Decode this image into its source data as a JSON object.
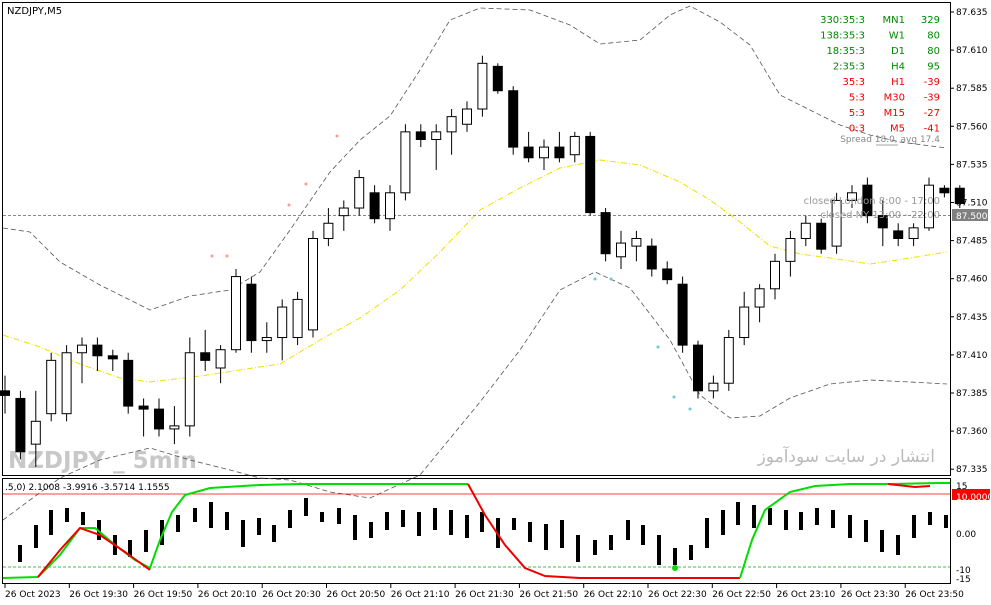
{
  "window": {
    "symbol_label": "NZDJPY,M5",
    "watermark": "NZDJPY _ 5min",
    "site_text": "انتشار در سایت سودآموز"
  },
  "colors": {
    "background": "#ffffff",
    "bull_fill": "#ffffff",
    "bear_fill": "#000000",
    "candle_outline": "#000000",
    "bollinger": "#555555",
    "ma_yellow": "#f0e000",
    "bid_line": "#888888",
    "osc_green": "#00dd00",
    "osc_red": "#ee0000",
    "level_line": "#ff0000",
    "level_green": "#00aa00",
    "price_tag_bg": "#808080",
    "positive": "#008800",
    "negative": "#ee0000"
  },
  "price_axis": {
    "labels": [
      "87.635",
      "87.610",
      "87.585",
      "87.560",
      "87.535",
      "87.510",
      "87.485",
      "87.460",
      "87.435",
      "87.410",
      "87.385",
      "87.360",
      "87.335"
    ],
    "current_price": "87.500"
  },
  "time_axis": {
    "labels": [
      "26 Oct 2023",
      "26 Oct 19:30",
      "26 Oct 19:50",
      "26 Oct 20:10",
      "26 Oct 20:30",
      "26 Oct 20:50",
      "26 Oct 21:10",
      "26 Oct 21:30",
      "26 Oct 21:50",
      "26 Oct 22:10",
      "26 Oct 22:30",
      "26 Oct 22:50",
      "26 Oct 23:10",
      "26 Oct 23:30",
      "26 Oct 23:50"
    ]
  },
  "timeframe_panel": {
    "rows": [
      {
        "time": "330:35:3",
        "tf": "MN1",
        "value": "329",
        "positive": true
      },
      {
        "time": "138:35:3",
        "tf": "W1",
        "value": "80",
        "positive": true
      },
      {
        "time": "18:35:3",
        "tf": "D1",
        "value": "80",
        "positive": true
      },
      {
        "time": "2:35:3",
        "tf": "H4",
        "value": "95",
        "positive": true
      },
      {
        "time": "35:3",
        "tf": "H1",
        "value": "-39",
        "positive": false
      },
      {
        "time": "5:3",
        "tf": "M30",
        "value": "-39",
        "positive": false
      },
      {
        "time": "5:3",
        "tf": "M15",
        "value": "-27",
        "positive": false
      },
      {
        "time": "0:3",
        "tf": "M5",
        "value": "-41",
        "positive": false
      }
    ],
    "spread": "Spread 18.0, avg 17.4"
  },
  "session_info": {
    "london": "closed London 8:00 - 17:00",
    "ny": "closed NY 13:00 - 22:00"
  },
  "indicator": {
    "label": ".5,0) 2.1008 -3.9916 -3.5714 1.1555",
    "axis_labels": [
      "15",
      "10.0000",
      "0.00",
      "-10",
      "-15"
    ]
  },
  "chart_data": {
    "type": "candlestick",
    "ylim": [
      87.33,
      87.64
    ],
    "candles": [
      {
        "o": 87.385,
        "h": 87.395,
        "l": 87.37,
        "c": 87.382
      },
      {
        "o": 87.38,
        "h": 87.385,
        "l": 87.34,
        "c": 87.345
      },
      {
        "o": 87.35,
        "h": 87.385,
        "l": 87.335,
        "c": 87.365
      },
      {
        "o": 87.37,
        "h": 87.41,
        "l": 87.365,
        "c": 87.405
      },
      {
        "o": 87.37,
        "h": 87.415,
        "l": 87.365,
        "c": 87.41
      },
      {
        "o": 87.41,
        "h": 87.42,
        "l": 87.39,
        "c": 87.415
      },
      {
        "o": 87.415,
        "h": 87.42,
        "l": 87.398,
        "c": 87.408
      },
      {
        "o": 87.408,
        "h": 87.412,
        "l": 87.398,
        "c": 87.406
      },
      {
        "o": 87.405,
        "h": 87.41,
        "l": 87.37,
        "c": 87.375
      },
      {
        "o": 87.375,
        "h": 87.38,
        "l": 87.355,
        "c": 87.373
      },
      {
        "o": 87.373,
        "h": 87.38,
        "l": 87.355,
        "c": 87.36
      },
      {
        "o": 87.36,
        "h": 87.375,
        "l": 87.35,
        "c": 87.362
      },
      {
        "o": 87.362,
        "h": 87.42,
        "l": 87.355,
        "c": 87.41
      },
      {
        "o": 87.41,
        "h": 87.425,
        "l": 87.398,
        "c": 87.405
      },
      {
        "o": 87.4,
        "h": 87.415,
        "l": 87.39,
        "c": 87.412
      },
      {
        "o": 87.412,
        "h": 87.465,
        "l": 87.41,
        "c": 87.46
      },
      {
        "o": 87.455,
        "h": 87.46,
        "l": 87.41,
        "c": 87.418
      },
      {
        "o": 87.418,
        "h": 87.43,
        "l": 87.41,
        "c": 87.42
      },
      {
        "o": 87.42,
        "h": 87.445,
        "l": 87.405,
        "c": 87.44
      },
      {
        "o": 87.42,
        "h": 87.45,
        "l": 87.415,
        "c": 87.445
      },
      {
        "o": 87.425,
        "h": 87.49,
        "l": 87.42,
        "c": 87.485
      },
      {
        "o": 87.485,
        "h": 87.505,
        "l": 87.48,
        "c": 87.495
      },
      {
        "o": 87.5,
        "h": 87.51,
        "l": 87.49,
        "c": 87.505
      },
      {
        "o": 87.505,
        "h": 87.53,
        "l": 87.5,
        "c": 87.525
      },
      {
        "o": 87.515,
        "h": 87.52,
        "l": 87.495,
        "c": 87.498
      },
      {
        "o": 87.498,
        "h": 87.52,
        "l": 87.49,
        "c": 87.515
      },
      {
        "o": 87.515,
        "h": 87.56,
        "l": 87.51,
        "c": 87.555
      },
      {
        "o": 87.555,
        "h": 87.56,
        "l": 87.545,
        "c": 87.55
      },
      {
        "o": 87.55,
        "h": 87.56,
        "l": 87.53,
        "c": 87.555
      },
      {
        "o": 87.555,
        "h": 87.57,
        "l": 87.54,
        "c": 87.565
      },
      {
        "o": 87.56,
        "h": 87.575,
        "l": 87.555,
        "c": 87.57
      },
      {
        "o": 87.57,
        "h": 87.605,
        "l": 87.565,
        "c": 87.6
      },
      {
        "o": 87.598,
        "h": 87.6,
        "l": 87.58,
        "c": 87.582
      },
      {
        "o": 87.582,
        "h": 87.585,
        "l": 87.54,
        "c": 87.545
      },
      {
        "o": 87.545,
        "h": 87.555,
        "l": 87.535,
        "c": 87.538
      },
      {
        "o": 87.538,
        "h": 87.55,
        "l": 87.53,
        "c": 87.545
      },
      {
        "o": 87.545,
        "h": 87.555,
        "l": 87.535,
        "c": 87.538
      },
      {
        "o": 87.54,
        "h": 87.555,
        "l": 87.535,
        "c": 87.552
      },
      {
        "o": 87.552,
        "h": 87.555,
        "l": 87.5,
        "c": 87.502
      },
      {
        "o": 87.502,
        "h": 87.505,
        "l": 87.47,
        "c": 87.475
      },
      {
        "o": 87.473,
        "h": 87.49,
        "l": 87.465,
        "c": 87.482
      },
      {
        "o": 87.48,
        "h": 87.49,
        "l": 87.47,
        "c": 87.485
      },
      {
        "o": 87.48,
        "h": 87.485,
        "l": 87.46,
        "c": 87.465
      },
      {
        "o": 87.465,
        "h": 87.47,
        "l": 87.455,
        "c": 87.458
      },
      {
        "o": 87.455,
        "h": 87.46,
        "l": 87.41,
        "c": 87.415
      },
      {
        "o": 87.415,
        "h": 87.418,
        "l": 87.38,
        "c": 87.385
      },
      {
        "o": 87.385,
        "h": 87.395,
        "l": 87.38,
        "c": 87.39
      },
      {
        "o": 87.39,
        "h": 87.425,
        "l": 87.385,
        "c": 87.42
      },
      {
        "o": 87.42,
        "h": 87.45,
        "l": 87.415,
        "c": 87.44
      },
      {
        "o": 87.44,
        "h": 87.455,
        "l": 87.43,
        "c": 87.452
      },
      {
        "o": 87.452,
        "h": 87.475,
        "l": 87.445,
        "c": 87.47
      },
      {
        "o": 87.47,
        "h": 87.49,
        "l": 87.46,
        "c": 87.485
      },
      {
        "o": 87.485,
        "h": 87.5,
        "l": 87.48,
        "c": 87.495
      },
      {
        "o": 87.495,
        "h": 87.498,
        "l": 87.475,
        "c": 87.478
      },
      {
        "o": 87.48,
        "h": 87.515,
        "l": 87.475,
        "c": 87.51
      },
      {
        "o": 87.51,
        "h": 87.52,
        "l": 87.505,
        "c": 87.515
      },
      {
        "o": 87.52,
        "h": 87.525,
        "l": 87.495,
        "c": 87.5
      },
      {
        "o": 87.5,
        "h": 87.51,
        "l": 87.48,
        "c": 87.492
      },
      {
        "o": 87.49,
        "h": 87.495,
        "l": 87.48,
        "c": 87.485
      },
      {
        "o": 87.485,
        "h": 87.495,
        "l": 87.48,
        "c": 87.492
      },
      {
        "o": 87.492,
        "h": 87.525,
        "l": 87.49,
        "c": 87.52
      },
      {
        "o": 87.518,
        "h": 87.52,
        "l": 87.512,
        "c": 87.515
      },
      {
        "o": 87.518,
        "h": 87.52,
        "l": 87.505,
        "c": 87.508
      }
    ]
  }
}
